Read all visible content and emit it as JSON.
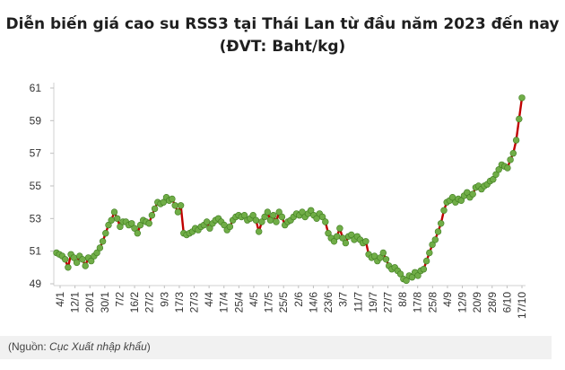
{
  "chart_data": {
    "type": "line",
    "title": "Diễn biến giá cao su RSS3 tại Thái Lan từ đầu năm 2023 đến nay",
    "subtitle": "(ĐVT: Baht/kg)",
    "xlabel": "",
    "ylabel": "",
    "ylim": [
      49,
      61
    ],
    "y_ticks": [
      49,
      51,
      53,
      55,
      57,
      59,
      61
    ],
    "grid": false,
    "legend": "none",
    "colors": {
      "line": "#c00000",
      "marker": "#70ad47",
      "marker_edge": "#3f7d20"
    },
    "x_tick_labels": [
      "4/1",
      "12/1",
      "20/1",
      "30/1",
      "7/2",
      "16/2",
      "27/2",
      "9/3",
      "17/3",
      "27/3",
      "4/4",
      "17/4",
      "25/4",
      "4/5",
      "17/5",
      "25/5",
      "2/6",
      "14/6",
      "23/6",
      "3/7",
      "11/7",
      "19/7",
      "27/7",
      "8/8",
      "17/8",
      "25/8",
      "4/9",
      "12/9",
      "20/9",
      "28/9",
      "6/10",
      "17/10"
    ],
    "series": [
      {
        "values": [
          50.9,
          50.8,
          50.7,
          50.5,
          50.0,
          50.8,
          50.6,
          50.3,
          50.7,
          50.5,
          50.1,
          50.6,
          50.4,
          50.7,
          50.9,
          51.2,
          51.6,
          52.1,
          52.6,
          52.9,
          53.4,
          53.0,
          52.5,
          52.8,
          52.8,
          52.6,
          52.7,
          52.4,
          52.1,
          52.6,
          52.9,
          52.8,
          52.7,
          53.2,
          53.6,
          54.0,
          53.9,
          54.0,
          54.3,
          54.1,
          54.2,
          53.8,
          53.4,
          53.8,
          52.1,
          52.0,
          52.1,
          52.2,
          52.4,
          52.3,
          52.5,
          52.6,
          52.8,
          52.4,
          52.7,
          52.9,
          53.0,
          52.8,
          52.6,
          52.3,
          52.5,
          52.9,
          53.1,
          53.2,
          53.1,
          53.2,
          52.9,
          53.0,
          53.2,
          52.9,
          52.2,
          52.8,
          53.1,
          53.4,
          52.9,
          53.2,
          52.8,
          53.4,
          53.1,
          52.6,
          52.8,
          52.9,
          53.1,
          53.3,
          53.2,
          53.4,
          53.1,
          53.3,
          53.5,
          53.2,
          53.0,
          53.3,
          53.1,
          52.8,
          52.1,
          51.8,
          51.6,
          51.9,
          52.4,
          51.8,
          51.5,
          51.9,
          52.0,
          51.7,
          51.9,
          51.7,
          51.5,
          51.6,
          50.8,
          50.6,
          50.7,
          50.4,
          50.6,
          50.9,
          50.5,
          50.1,
          49.9,
          50.0,
          49.8,
          49.6,
          49.3,
          49.2,
          49.5,
          49.4,
          49.7,
          49.5,
          49.8,
          49.9,
          50.4,
          50.9,
          51.4,
          51.7,
          52.2,
          52.7,
          53.5,
          54.0,
          54.1,
          54.3,
          54.0,
          54.2,
          54.1,
          54.4,
          54.6,
          54.3,
          54.5,
          54.9,
          55.0,
          54.8,
          55.0,
          55.1,
          55.3,
          55.4,
          55.7,
          56.0,
          56.3,
          56.2,
          56.1,
          56.6,
          57.0,
          57.8,
          59.1,
          60.4
        ]
      }
    ]
  },
  "source": {
    "prefix": "(Nguồn: ",
    "name": "Cục Xuất nhập khẩu",
    "suffix": ")"
  }
}
